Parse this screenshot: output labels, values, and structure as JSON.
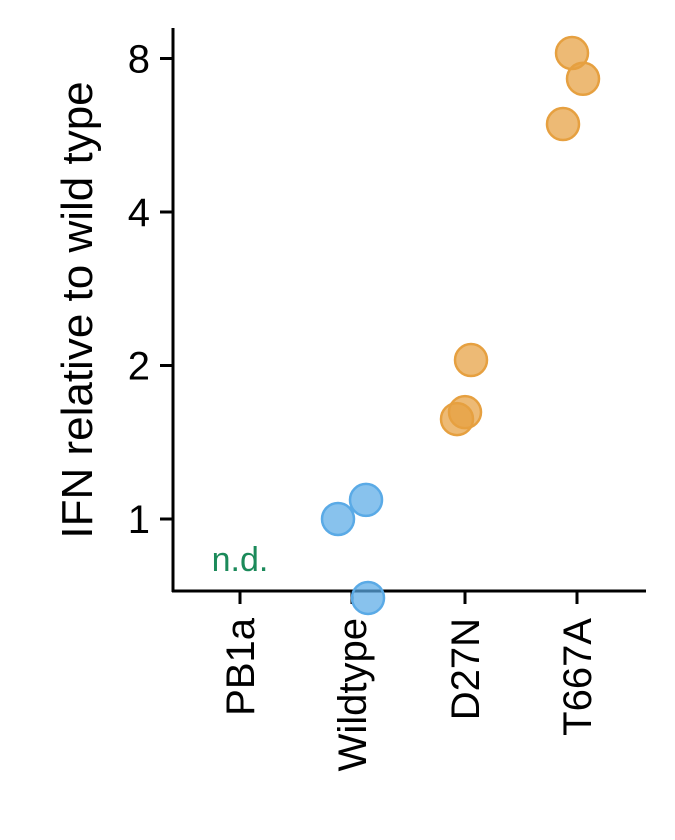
{
  "chart_data": {
    "type": "scatter",
    "ylabel": "IFN relative to wild type",
    "xlabel": "",
    "y_scale": "log2",
    "yticks": [
      1,
      2,
      4,
      8
    ],
    "ylim": [
      0.62,
      9.9
    ],
    "grid": false,
    "categories": [
      "PB1a",
      "Wildtype",
      "D27N",
      "T667A"
    ],
    "series": [
      {
        "category": "PB1a",
        "values": [],
        "annotation": "n.d.",
        "color": "#1b8a5a"
      },
      {
        "category": "Wildtype",
        "values": [
          1.09,
          1.0,
          0.7
        ],
        "color": "#5aaae6"
      },
      {
        "category": "D27N",
        "values": [
          2.05,
          1.62,
          1.57
        ],
        "color": "#e6a040"
      },
      {
        "category": "T667A",
        "values": [
          8.2,
          7.3,
          5.95
        ],
        "color": "#e6a040"
      }
    ]
  }
}
